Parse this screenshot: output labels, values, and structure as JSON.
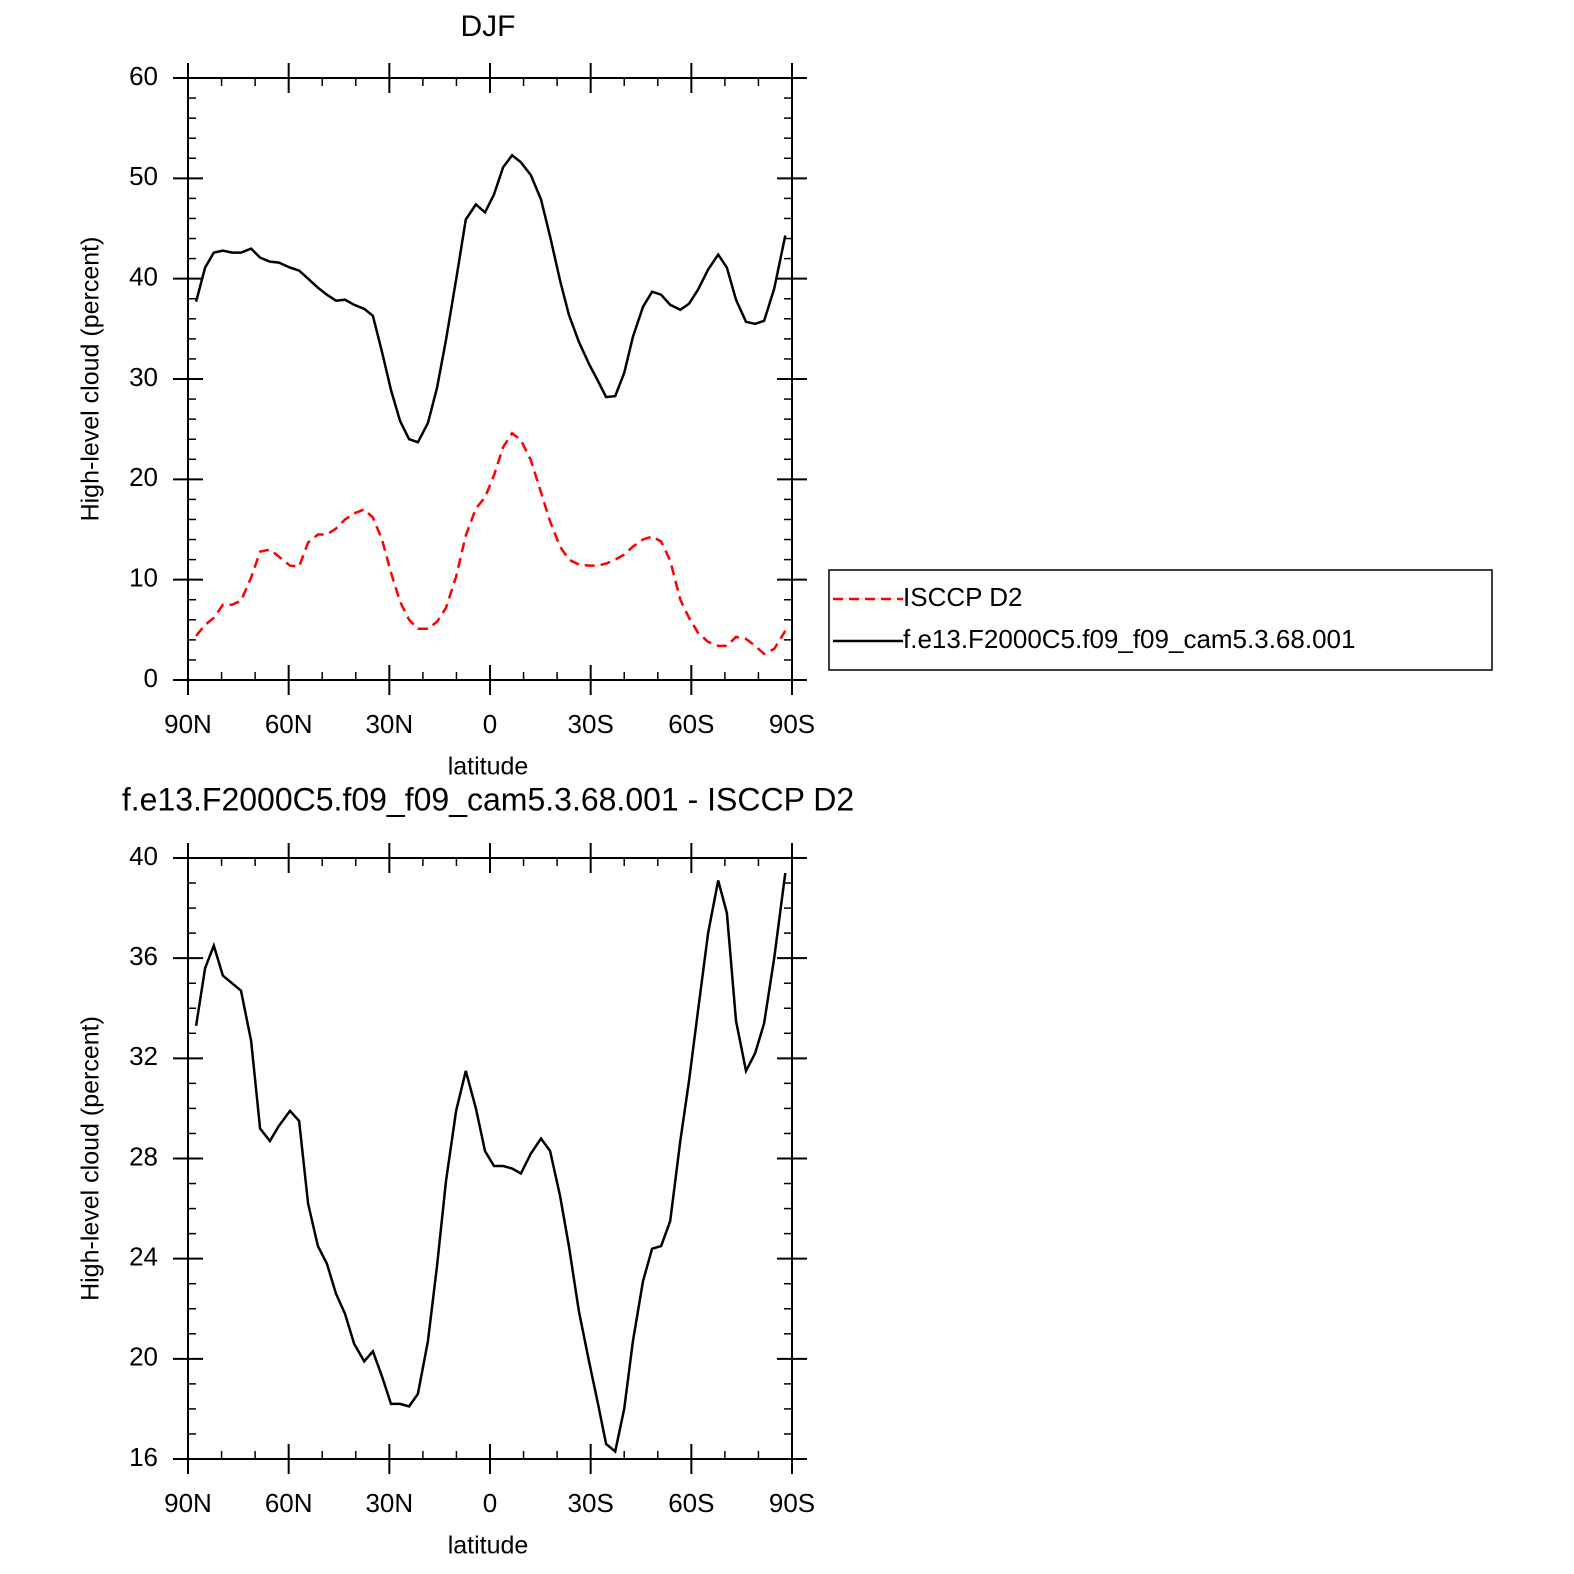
{
  "chart_data": [
    {
      "type": "line",
      "title": "DJF",
      "xlabel": "latitude",
      "ylabel": "High-level cloud (percent)",
      "x": [
        87.6,
        84.9,
        82.3,
        79.6,
        76.9,
        74.2,
        71.2,
        68.5,
        65.6,
        62.9,
        59.6,
        56.9,
        54.2,
        51.3,
        48.6,
        45.9,
        43.2,
        40.5,
        37.5,
        34.9,
        32.2,
        29.5,
        26.8,
        24.1,
        21.5,
        18.5,
        15.8,
        13.1,
        10.1,
        7.2,
        4.2,
        1.5,
        -1.2,
        -3.9,
        -6.6,
        -9.2,
        -12.2,
        -15.2,
        -17.9,
        -20.9,
        -23.5,
        -26.5,
        -29.5,
        -32.2,
        -34.6,
        -37.3,
        -40.0,
        -42.6,
        -45.6,
        -48.3,
        -51.0,
        -53.7,
        -56.7,
        -59.3,
        -62.0,
        -65.0,
        -68.0,
        -70.6,
        -73.3,
        -76.3,
        -79.0,
        -81.7,
        -84.7,
        -88.0
      ],
      "series": [
        {
          "name": "ISCCP D2",
          "color": "#ff0000",
          "dash": "dashed",
          "values": [
            4.4,
            5.5,
            6.2,
            7.5,
            7.5,
            7.9,
            10.2,
            12.8,
            13.0,
            12.3,
            11.4,
            11.3,
            13.7,
            14.5,
            14.5,
            15.1,
            16.0,
            16.6,
            17.0,
            16.2,
            14.0,
            10.7,
            7.8,
            6.0,
            5.1,
            5.1,
            5.8,
            7.2,
            10.3,
            14.4,
            17.1,
            18.2,
            20.4,
            23.2,
            24.6,
            23.9,
            21.9,
            18.7,
            15.8,
            13.3,
            12.0,
            11.5,
            11.4,
            11.4,
            11.6,
            12.0,
            12.5,
            13.3,
            14.0,
            14.3,
            13.8,
            11.9,
            8.0,
            6.2,
            4.7,
            3.8,
            3.4,
            3.4,
            4.3,
            4.1,
            3.4,
            2.6,
            3.1,
            4.9
          ]
        },
        {
          "name": "f.e13.F2000C5.f09_f09_cam5.3.68.001",
          "color": "#000000",
          "dash": "solid",
          "values": [
            37.7,
            41.1,
            42.6,
            42.8,
            42.6,
            42.6,
            43.0,
            42.1,
            41.7,
            41.6,
            41.1,
            40.8,
            40.0,
            39.1,
            38.4,
            37.8,
            37.9,
            37.4,
            37.0,
            36.3,
            32.7,
            28.9,
            25.8,
            24.0,
            23.7,
            25.6,
            29.1,
            33.9,
            39.9,
            45.9,
            47.4,
            46.6,
            48.4,
            51.1,
            52.3,
            51.6,
            50.3,
            47.9,
            44.2,
            39.8,
            36.4,
            33.7,
            31.5,
            29.8,
            28.2,
            28.3,
            30.6,
            34.2,
            37.2,
            38.7,
            38.4,
            37.4,
            36.9,
            37.5,
            38.9,
            40.9,
            42.4,
            41.1,
            37.9,
            35.7,
            35.5,
            35.8,
            39.0,
            44.3
          ]
        }
      ],
      "xlim": [
        90,
        -90
      ],
      "xticks": [
        {
          "value": 90,
          "label": "90N"
        },
        {
          "value": 60,
          "label": "60N"
        },
        {
          "value": 30,
          "label": "30N"
        },
        0,
        {
          "value": -30,
          "label": "30S"
        },
        {
          "value": -60,
          "label": "60S"
        },
        {
          "value": -90,
          "label": "90S"
        }
      ],
      "xminorticks": [
        80,
        70,
        50,
        40,
        20,
        10,
        -10,
        -20,
        -40,
        -50,
        -70,
        -80
      ],
      "ylim": [
        0,
        60
      ],
      "yticks": [
        0,
        10,
        20,
        30,
        40,
        50,
        60
      ],
      "yminorticks": [
        2,
        4,
        6,
        8,
        12,
        14,
        16,
        18,
        22,
        24,
        26,
        28,
        32,
        34,
        36,
        38,
        42,
        44,
        46,
        48,
        52,
        54,
        56,
        58
      ],
      "legend": "right"
    },
    {
      "type": "line",
      "title": "f.e13.F2000C5.f09_f09_cam5.3.68.001 - ISCCP D2",
      "xlabel": "latitude",
      "ylabel": "High-level cloud (percent)",
      "x": [
        87.6,
        84.9,
        82.3,
        79.6,
        76.9,
        74.2,
        71.2,
        68.5,
        65.6,
        62.9,
        59.6,
        56.9,
        54.2,
        51.3,
        48.6,
        45.9,
        43.2,
        40.5,
        37.5,
        34.9,
        32.2,
        29.5,
        26.8,
        24.1,
        21.5,
        18.5,
        15.8,
        13.1,
        10.1,
        7.2,
        4.2,
        1.5,
        -1.2,
        -3.9,
        -6.6,
        -9.2,
        -12.2,
        -15.2,
        -17.9,
        -20.9,
        -23.5,
        -26.5,
        -29.5,
        -32.2,
        -34.6,
        -37.3,
        -40.0,
        -42.6,
        -45.6,
        -48.3,
        -51.0,
        -53.7,
        -56.7,
        -59.3,
        -62.0,
        -65.0,
        -68.0,
        -70.6,
        -73.3,
        -76.3,
        -79.0,
        -81.7,
        -84.7,
        -88.0
      ],
      "values": [
        33.3,
        35.6,
        36.5,
        35.3,
        35.0,
        34.7,
        32.7,
        29.2,
        28.7,
        29.3,
        29.9,
        29.5,
        26.2,
        24.5,
        23.8,
        22.6,
        21.8,
        20.6,
        19.9,
        20.3,
        19.3,
        18.2,
        18.2,
        18.1,
        18.6,
        20.7,
        23.7,
        27.1,
        29.9,
        31.5,
        30.0,
        28.3,
        27.7,
        27.7,
        27.6,
        27.4,
        28.2,
        28.8,
        28.3,
        26.5,
        24.5,
        21.9,
        19.9,
        18.2,
        16.6,
        16.3,
        18.0,
        20.7,
        23.1,
        24.4,
        24.5,
        25.5,
        28.7,
        31.1,
        33.9,
        37.0,
        39.1,
        37.8,
        33.5,
        31.5,
        32.2,
        33.4,
        36.0,
        39.4
      ],
      "color": "#000000",
      "xlim": [
        90,
        -90
      ],
      "xticks": [
        {
          "value": 90,
          "label": "90N"
        },
        {
          "value": 60,
          "label": "60N"
        },
        {
          "value": 30,
          "label": "30N"
        },
        0,
        {
          "value": -30,
          "label": "30S"
        },
        {
          "value": -60,
          "label": "60S"
        },
        {
          "value": -90,
          "label": "90S"
        }
      ],
      "xminorticks": [
        80,
        70,
        50,
        40,
        20,
        10,
        -10,
        -20,
        -40,
        -50,
        -70,
        -80
      ],
      "ylim": [
        16,
        40
      ],
      "yticks": [
        16,
        20,
        24,
        28,
        32,
        36,
        40
      ],
      "yminorticks": [
        17,
        18,
        19,
        21,
        22,
        23,
        25,
        26,
        27,
        29,
        30,
        31,
        33,
        34,
        35,
        37,
        38,
        39
      ]
    }
  ]
}
